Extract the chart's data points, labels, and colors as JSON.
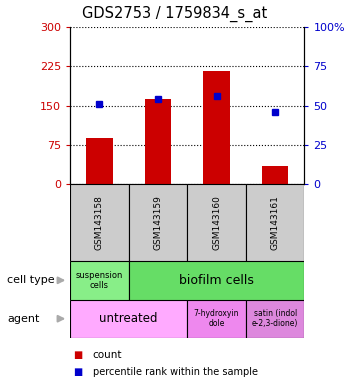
{
  "title": "GDS2753 / 1759834_s_at",
  "samples": [
    "GSM143158",
    "GSM143159",
    "GSM143160",
    "GSM143161"
  ],
  "counts": [
    88,
    163,
    215,
    35
  ],
  "percentiles": [
    51,
    54,
    56,
    46
  ],
  "ylim_left": [
    0,
    300
  ],
  "ylim_right": [
    0,
    100
  ],
  "yticks_left": [
    0,
    75,
    150,
    225,
    300
  ],
  "yticks_right": [
    0,
    25,
    50,
    75,
    100
  ],
  "ytick_labels_right": [
    "0",
    "25",
    "50",
    "75",
    "100%"
  ],
  "bar_color": "#cc0000",
  "dot_color": "#0000cc",
  "bar_width": 0.45,
  "left_axis_color": "#cc0000",
  "right_axis_color": "#0000cc",
  "sample_box_color": "#cccccc",
  "cell_type_suspension_color": "#88ee88",
  "cell_type_biofilm_color": "#66dd66",
  "agent_untreated_color": "#ffaaff",
  "agent_hydroxy_color": "#ee88ee",
  "agent_satin_color": "#dd88dd",
  "legend_count_color": "#cc0000",
  "legend_dot_color": "#0000cc",
  "arrow_color": "#aaaaaa"
}
